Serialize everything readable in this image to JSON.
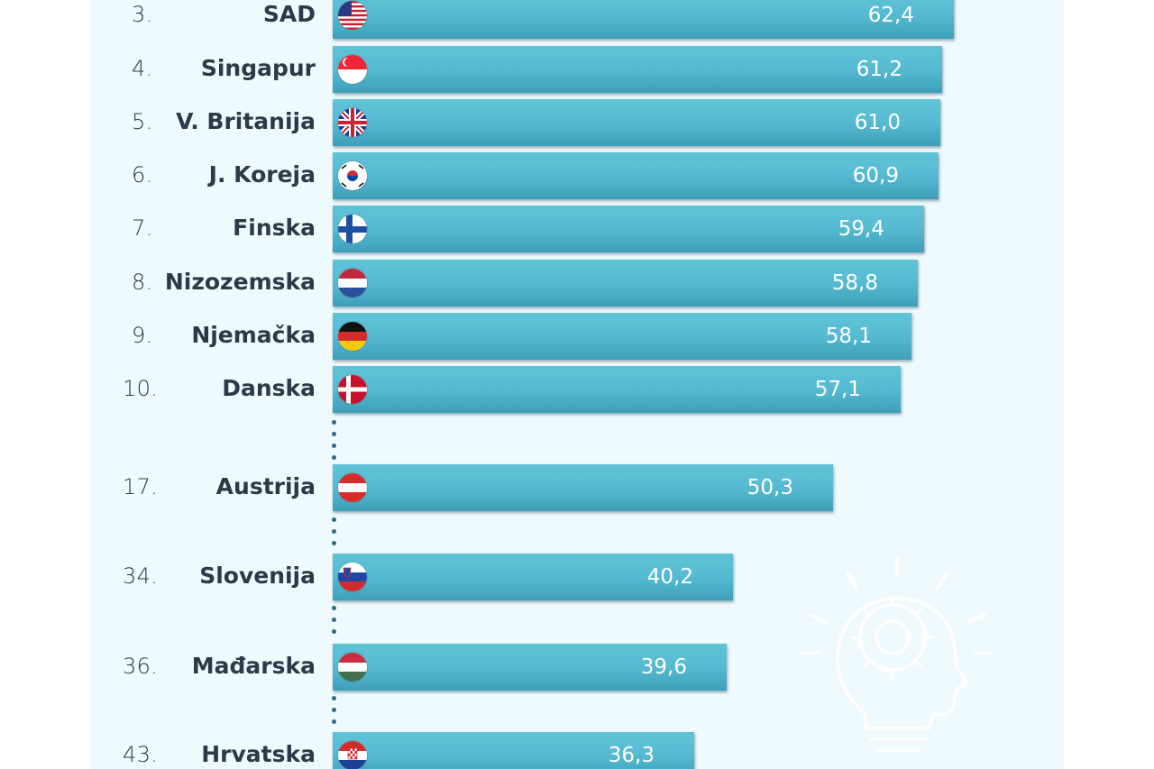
{
  "chart_data": {
    "type": "bar",
    "orientation": "horizontal",
    "title": "",
    "xlabel": "",
    "ylabel": "",
    "xlim": [
      0,
      65
    ],
    "grid": false,
    "legend": "none",
    "bar_color": "#57bcd3",
    "rows": [
      {
        "rank": "3.",
        "country": "SAD",
        "value": 62.4,
        "label": "62,4",
        "flag": "us-flag-icon"
      },
      {
        "rank": "4.",
        "country": "Singapur",
        "value": 61.2,
        "label": "61,2",
        "flag": "singapore-flag-icon"
      },
      {
        "rank": "5.",
        "country": "V. Britanija",
        "value": 61.0,
        "label": "61,0",
        "flag": "uk-flag-icon"
      },
      {
        "rank": "6.",
        "country": "J. Koreja",
        "value": 60.9,
        "label": "60,9",
        "flag": "south-korea-flag-icon"
      },
      {
        "rank": "7.",
        "country": "Finska",
        "value": 59.4,
        "label": "59,4",
        "flag": "finland-flag-icon"
      },
      {
        "rank": "8.",
        "country": "Nizozemska",
        "value": 58.8,
        "label": "58,8",
        "flag": "netherlands-flag-icon"
      },
      {
        "rank": "9.",
        "country": "Njemačka",
        "value": 58.1,
        "label": "58,1",
        "flag": "germany-flag-icon"
      },
      {
        "rank": "10.",
        "country": "Danska",
        "value": 57.1,
        "label": "57,1",
        "flag": "denmark-flag-icon"
      },
      {
        "rank": "17.",
        "country": "Austrija",
        "value": 50.3,
        "label": "50,3",
        "flag": "austria-flag-icon"
      },
      {
        "rank": "34.",
        "country": "Slovenija",
        "value": 40.2,
        "label": "40,2",
        "flag": "slovenia-flag-icon"
      },
      {
        "rank": "36.",
        "country": "Mađarska",
        "value": 39.6,
        "label": "39,6",
        "flag": "hungary-flag-icon"
      },
      {
        "rank": "43.",
        "country": "Hrvatska",
        "value": 36.3,
        "label": "36,3",
        "flag": "croatia-flag-icon"
      }
    ]
  },
  "decoration": {
    "icon": "lightbulb-gear-icon"
  }
}
